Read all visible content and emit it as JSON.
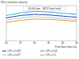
{
  "chart_data": {
    "type": "line",
    "y_label": "NOx (relative values)",
    "annotation": "(6,000 rpm - WOT fixed ratio)",
    "x_label": "Fuel flow (mm³/st)",
    "x": [
      20,
      25,
      30,
      35,
      40,
      45
    ],
    "xlim": [
      20,
      45
    ],
    "xticks": [
      20,
      25,
      30,
      35,
      40,
      45
    ],
    "ylim": [
      0,
      1.2
    ],
    "yticks": [
      0,
      0.4,
      0.8,
      1.2
    ],
    "tick_labels": "x",
    "grid": false,
    "legend": "bottom",
    "series": [
      {
        "name": "L/R = 0.423",
        "color": "#1f3a93",
        "values": [
          0.78,
          0.86,
          0.9,
          0.88,
          0.84,
          0.8
        ]
      },
      {
        "name": "L/R = 0.44",
        "color": "#2fa8e0",
        "values": [
          0.86,
          0.95,
          1.0,
          0.98,
          0.94,
          0.9
        ]
      },
      {
        "name": "L/R = 0.477",
        "color": "#9ec9e8",
        "values": [
          0.7,
          0.78,
          0.82,
          0.8,
          0.76,
          0.72
        ]
      },
      {
        "name": "L/R = 0.5",
        "color": "#f08a24",
        "values": [
          0.62,
          0.7,
          0.74,
          0.73,
          0.7,
          0.66
        ]
      }
    ]
  }
}
